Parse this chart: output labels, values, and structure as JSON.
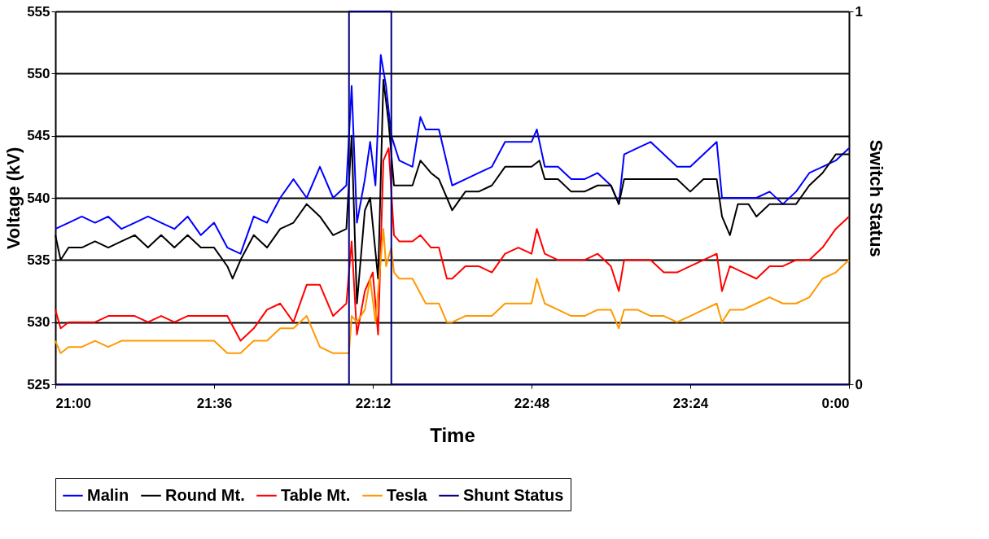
{
  "chart_data": {
    "type": "line",
    "xlabel": "Time",
    "ylabel": "Voltage (kV)",
    "y2label": "Switch Status",
    "xlim": [
      21,
      24
    ],
    "xticks": [
      {
        "value": 21,
        "label": "21:00"
      },
      {
        "value": 21.6,
        "label": "21:36"
      },
      {
        "value": 22.2,
        "label": "22:12"
      },
      {
        "value": 22.8,
        "label": "22:48"
      },
      {
        "value": 23.4,
        "label": "23:24"
      },
      {
        "value": 24,
        "label": "0:00"
      }
    ],
    "ylim": [
      525,
      555
    ],
    "yticks": [
      525,
      530,
      535,
      540,
      545,
      550,
      555
    ],
    "y2lim": [
      0,
      1
    ],
    "y2ticks": [
      0,
      1
    ],
    "grid": "y",
    "legend": "bottom",
    "marker": "none",
    "line_style": "solid",
    "series": [
      {
        "name": "Malin",
        "color": "#0000ff",
        "x": [
          21.0,
          21.05,
          21.1,
          21.15,
          21.2,
          21.25,
          21.3,
          21.35,
          21.4,
          21.45,
          21.5,
          21.55,
          21.6,
          21.65,
          21.7,
          21.75,
          21.8,
          21.85,
          21.9,
          21.95,
          22.0,
          22.05,
          22.1,
          22.12,
          22.14,
          22.17,
          22.19,
          22.21,
          22.23,
          22.25,
          22.27,
          22.3,
          22.35,
          22.38,
          22.4,
          22.45,
          22.5,
          22.55,
          22.6,
          22.65,
          22.7,
          22.75,
          22.8,
          22.82,
          22.85,
          22.9,
          22.95,
          23.0,
          23.05,
          23.1,
          23.13,
          23.15,
          23.2,
          23.25,
          23.3,
          23.35,
          23.4,
          23.45,
          23.5,
          23.52,
          23.55,
          23.6,
          23.65,
          23.7,
          23.75,
          23.8,
          23.85,
          23.9,
          23.95,
          24.0
        ],
        "values": [
          537.5,
          538,
          538.5,
          538,
          538.5,
          537.5,
          538,
          538.5,
          538,
          537.5,
          538.5,
          537,
          538,
          536,
          535.5,
          538.5,
          538,
          540,
          541.5,
          540,
          542.5,
          540,
          541,
          549,
          538,
          541.5,
          544.5,
          541,
          551.5,
          549,
          545,
          543,
          542.5,
          546.5,
          545.5,
          545.5,
          541,
          541.5,
          542,
          542.5,
          544.5,
          544.5,
          544.5,
          545.5,
          542.5,
          542.5,
          541.5,
          541.5,
          542,
          541,
          539.5,
          543.5,
          544,
          544.5,
          543.5,
          542.5,
          542.5,
          543.5,
          544.5,
          540,
          540,
          540,
          540,
          540.5,
          539.5,
          540.5,
          542,
          542.5,
          543,
          544
        ]
      },
      {
        "name": "Round Mt.",
        "color": "#000000",
        "x": [
          21.0,
          21.02,
          21.05,
          21.1,
          21.15,
          21.2,
          21.25,
          21.3,
          21.35,
          21.4,
          21.45,
          21.5,
          21.55,
          21.6,
          21.65,
          21.67,
          21.7,
          21.75,
          21.8,
          21.85,
          21.9,
          21.95,
          22.0,
          22.05,
          22.1,
          22.12,
          22.14,
          22.17,
          22.19,
          22.22,
          22.24,
          22.26,
          22.28,
          22.3,
          22.35,
          22.38,
          22.42,
          22.45,
          22.48,
          22.5,
          22.55,
          22.6,
          22.65,
          22.7,
          22.8,
          22.83,
          22.85,
          22.9,
          22.95,
          23.0,
          23.05,
          23.1,
          23.13,
          23.15,
          23.3,
          23.35,
          23.4,
          23.45,
          23.5,
          23.52,
          23.55,
          23.58,
          23.62,
          23.65,
          23.7,
          23.75,
          23.8,
          23.85,
          23.9,
          23.95,
          24.0
        ],
        "values": [
          537,
          535,
          536,
          536,
          536.5,
          536,
          536.5,
          537,
          536,
          537,
          536,
          537,
          536,
          536,
          534.5,
          533.5,
          535,
          537,
          536,
          537.5,
          538,
          539.5,
          538.5,
          537,
          537.5,
          545,
          531.5,
          539,
          540,
          533.5,
          549.5,
          546,
          541,
          541,
          541,
          543,
          542,
          541.5,
          540,
          539,
          540.5,
          540.5,
          541,
          542.5,
          542.5,
          543,
          541.5,
          541.5,
          540.5,
          540.5,
          541,
          541,
          539.5,
          541.5,
          541.5,
          541.5,
          540.5,
          541.5,
          541.5,
          538.5,
          537,
          539.5,
          539.5,
          538.5,
          539.5,
          539.5,
          539.5,
          541,
          542,
          543.5,
          543.5
        ]
      },
      {
        "name": "Table Mt.",
        "color": "#ff0000",
        "x": [
          21.0,
          21.02,
          21.05,
          21.1,
          21.15,
          21.2,
          21.25,
          21.3,
          21.35,
          21.4,
          21.45,
          21.5,
          21.55,
          21.6,
          21.65,
          21.7,
          21.75,
          21.8,
          21.85,
          21.9,
          21.95,
          22.0,
          22.05,
          22.1,
          22.12,
          22.14,
          22.17,
          22.2,
          22.22,
          22.24,
          22.26,
          22.28,
          22.3,
          22.35,
          22.38,
          22.42,
          22.45,
          22.48,
          22.5,
          22.55,
          22.6,
          22.65,
          22.7,
          22.75,
          22.8,
          22.82,
          22.85,
          22.9,
          22.95,
          23.0,
          23.05,
          23.1,
          23.13,
          23.15,
          23.2,
          23.25,
          23.3,
          23.35,
          23.4,
          23.45,
          23.5,
          23.52,
          23.55,
          23.6,
          23.65,
          23.7,
          23.75,
          23.8,
          23.85,
          23.9,
          23.95,
          24.0
        ],
        "values": [
          531,
          529.5,
          530,
          530,
          530,
          530.5,
          530.5,
          530.5,
          530,
          530.5,
          530,
          530.5,
          530.5,
          530.5,
          530.5,
          528.5,
          529.5,
          531,
          531.5,
          530,
          533,
          533,
          530.5,
          531.5,
          536.5,
          529,
          532.5,
          534,
          529,
          543,
          544,
          537,
          536.5,
          536.5,
          537,
          536,
          536,
          533.5,
          533.5,
          534.5,
          534.5,
          534,
          535.5,
          536,
          535.5,
          537.5,
          535.5,
          535,
          535,
          535,
          535.5,
          534.5,
          532.5,
          535,
          535,
          535,
          534,
          534,
          534.5,
          535,
          535.5,
          532.5,
          534.5,
          534,
          533.5,
          534.5,
          534.5,
          535,
          535,
          536,
          537.5,
          538.5
        ]
      },
      {
        "name": "Tesla",
        "color": "#ff9900",
        "x": [
          21.0,
          21.02,
          21.05,
          21.1,
          21.15,
          21.2,
          21.25,
          21.3,
          21.35,
          21.4,
          21.45,
          21.5,
          21.55,
          21.6,
          21.65,
          21.7,
          21.75,
          21.8,
          21.85,
          21.9,
          21.95,
          22.0,
          22.05,
          22.1,
          22.11,
          22.12,
          22.14,
          22.17,
          22.19,
          22.21,
          22.24,
          22.25,
          22.27,
          22.28,
          22.3,
          22.35,
          22.4,
          22.45,
          22.48,
          22.5,
          22.55,
          22.6,
          22.65,
          22.7,
          22.8,
          22.82,
          22.85,
          22.9,
          22.95,
          23.0,
          23.05,
          23.1,
          23.13,
          23.15,
          23.2,
          23.25,
          23.3,
          23.35,
          23.4,
          23.45,
          23.5,
          23.52,
          23.55,
          23.6,
          23.65,
          23.7,
          23.75,
          23.8,
          23.85,
          23.9,
          23.95,
          24.0
        ],
        "values": [
          528.5,
          527.5,
          528,
          528,
          528.5,
          528,
          528.5,
          528.5,
          528.5,
          528.5,
          528.5,
          528.5,
          528.5,
          528.5,
          527.5,
          527.5,
          528.5,
          528.5,
          529.5,
          529.5,
          530.5,
          528,
          527.5,
          527.5,
          527.5,
          530.5,
          530,
          531,
          533.5,
          530,
          537.5,
          534.5,
          536,
          534,
          533.5,
          533.5,
          531.5,
          531.5,
          530,
          530,
          530.5,
          530.5,
          530.5,
          531.5,
          531.5,
          533.5,
          531.5,
          531,
          530.5,
          530.5,
          531,
          531,
          529.5,
          531,
          531,
          530.5,
          530.5,
          530,
          530.5,
          531,
          531.5,
          530,
          531,
          531,
          531.5,
          532,
          531.5,
          531.5,
          532,
          533.5,
          534,
          535
        ]
      },
      {
        "name": "Shunt Status",
        "color": "#000080",
        "type": "step",
        "axis": "y2",
        "x": [
          21,
          22.11,
          22.27,
          24
        ],
        "values": [
          0,
          1,
          0,
          0
        ]
      }
    ]
  }
}
